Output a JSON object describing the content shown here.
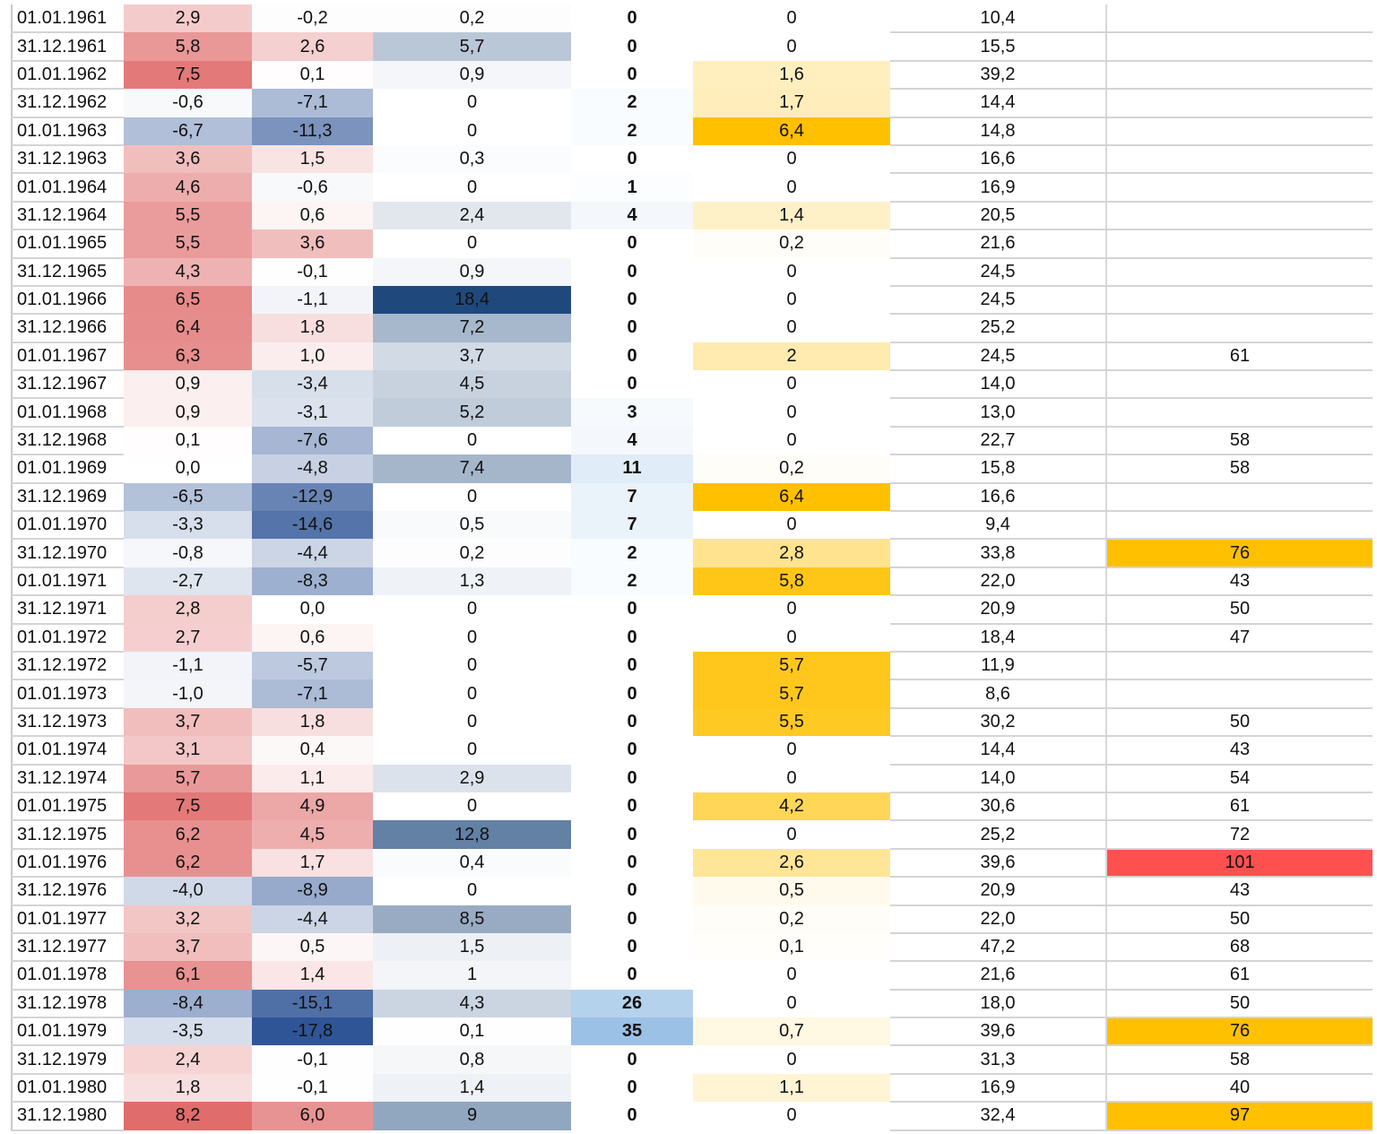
{
  "colors": {
    "warm_max": "#e06c6c",
    "cold_min": "#2f5597",
    "precip_max": "#1f497d",
    "count_max": "#9bc2e6",
    "amber": "#ffc000",
    "alert_red": "#ff5050"
  },
  "rows": [
    [
      "01.01.1961",
      "2,9",
      "-0,2",
      "0,2",
      "0",
      "0",
      "10,4",
      ""
    ],
    [
      "31.12.1961",
      "5,8",
      "2,6",
      "5,7",
      "0",
      "0",
      "15,5",
      ""
    ],
    [
      "01.01.1962",
      "7,5",
      "0,1",
      "0,9",
      "0",
      "1,6",
      "39,2",
      ""
    ],
    [
      "31.12.1962",
      "-0,6",
      "-7,1",
      "0",
      "2",
      "1,7",
      "14,4",
      ""
    ],
    [
      "01.01.1963",
      "-6,7",
      "-11,3",
      "0",
      "2",
      "6,4",
      "14,8",
      ""
    ],
    [
      "31.12.1963",
      "3,6",
      "1,5",
      "0,3",
      "0",
      "0",
      "16,6",
      ""
    ],
    [
      "01.01.1964",
      "4,6",
      "-0,6",
      "0",
      "1",
      "0",
      "16,9",
      ""
    ],
    [
      "31.12.1964",
      "5,5",
      "0,6",
      "2,4",
      "4",
      "1,4",
      "20,5",
      ""
    ],
    [
      "01.01.1965",
      "5,5",
      "3,6",
      "0",
      "0",
      "0,2",
      "21,6",
      ""
    ],
    [
      "31.12.1965",
      "4,3",
      "-0,1",
      "0,9",
      "0",
      "0",
      "24,5",
      ""
    ],
    [
      "01.01.1966",
      "6,5",
      "-1,1",
      "18,4",
      "0",
      "0",
      "24,5",
      ""
    ],
    [
      "31.12.1966",
      "6,4",
      "1,8",
      "7,2",
      "0",
      "0",
      "25,2",
      ""
    ],
    [
      "01.01.1967",
      "6,3",
      "1,0",
      "3,7",
      "0",
      "2",
      "24,5",
      "61"
    ],
    [
      "31.12.1967",
      "0,9",
      "-3,4",
      "4,5",
      "0",
      "0",
      "14,0",
      ""
    ],
    [
      "01.01.1968",
      "0,9",
      "-3,1",
      "5,2",
      "3",
      "0",
      "13,0",
      ""
    ],
    [
      "31.12.1968",
      "0,1",
      "-7,6",
      "0",
      "4",
      "0",
      "22,7",
      "58"
    ],
    [
      "01.01.1969",
      "0,0",
      "-4,8",
      "7,4",
      "11",
      "0,2",
      "15,8",
      "58"
    ],
    [
      "31.12.1969",
      "-6,5",
      "-12,9",
      "0",
      "7",
      "6,4",
      "16,6",
      ""
    ],
    [
      "01.01.1970",
      "-3,3",
      "-14,6",
      "0,5",
      "7",
      "0",
      "9,4",
      ""
    ],
    [
      "31.12.1970",
      "-0,8",
      "-4,4",
      "0,2",
      "2",
      "2,8",
      "33,8",
      "76"
    ],
    [
      "01.01.1971",
      "-2,7",
      "-8,3",
      "1,3",
      "2",
      "5,8",
      "22,0",
      "43"
    ],
    [
      "31.12.1971",
      "2,8",
      "0,0",
      "0",
      "0",
      "0",
      "20,9",
      "50"
    ],
    [
      "01.01.1972",
      "2,7",
      "0,6",
      "0",
      "0",
      "0",
      "18,4",
      "47"
    ],
    [
      "31.12.1972",
      "-1,1",
      "-5,7",
      "0",
      "0",
      "5,7",
      "11,9",
      ""
    ],
    [
      "01.01.1973",
      "-1,0",
      "-7,1",
      "0",
      "0",
      "5,7",
      "8,6",
      ""
    ],
    [
      "31.12.1973",
      "3,7",
      "1,8",
      "0",
      "0",
      "5,5",
      "30,2",
      "50"
    ],
    [
      "01.01.1974",
      "3,1",
      "0,4",
      "0",
      "0",
      "0",
      "14,4",
      "43"
    ],
    [
      "31.12.1974",
      "5,7",
      "1,1",
      "2,9",
      "0",
      "0",
      "14,0",
      "54"
    ],
    [
      "01.01.1975",
      "7,5",
      "4,9",
      "0",
      "0",
      "4,2",
      "30,6",
      "61"
    ],
    [
      "31.12.1975",
      "6,2",
      "4,5",
      "12,8",
      "0",
      "0",
      "25,2",
      "72"
    ],
    [
      "01.01.1976",
      "6,2",
      "1,7",
      "0,4",
      "0",
      "2,6",
      "39,6",
      "101"
    ],
    [
      "31.12.1976",
      "-4,0",
      "-8,9",
      "0",
      "0",
      "0,5",
      "20,9",
      "43"
    ],
    [
      "01.01.1977",
      "3,2",
      "-4,4",
      "8,5",
      "0",
      "0,2",
      "22,0",
      "50"
    ],
    [
      "31.12.1977",
      "3,7",
      "0,5",
      "1,5",
      "0",
      "0,1",
      "47,2",
      "68"
    ],
    [
      "01.01.1978",
      "6,1",
      "1,4",
      "1",
      "0",
      "0",
      "21,6",
      "61"
    ],
    [
      "31.12.1978",
      "-8,4",
      "-15,1",
      "4,3",
      "26",
      "0",
      "18,0",
      "50"
    ],
    [
      "01.01.1979",
      "-3,5",
      "-17,8",
      "0,1",
      "35",
      "0,7",
      "39,6",
      "76"
    ],
    [
      "31.12.1979",
      "2,4",
      "-0,1",
      "0,8",
      "0",
      "0",
      "31,3",
      "58"
    ],
    [
      "01.01.1980",
      "1,8",
      "-0,1",
      "1,4",
      "0",
      "1,1",
      "16,9",
      "40"
    ],
    [
      "31.12.1980",
      "8,2",
      "6,0",
      "9",
      "0",
      "0",
      "32,4",
      "97"
    ]
  ]
}
